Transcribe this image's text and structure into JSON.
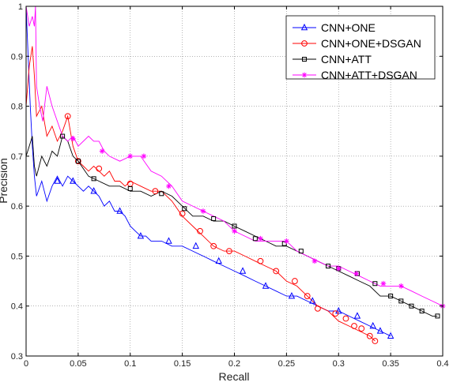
{
  "chart_data": {
    "type": "line",
    "xlabel": "Recall",
    "ylabel": "Precision",
    "xlim": [
      0,
      0.4
    ],
    "ylim": [
      0.3,
      1
    ],
    "xticks": [
      {
        "v": 0,
        "label": "0"
      },
      {
        "v": 0.05,
        "label": "0.05"
      },
      {
        "v": 0.1,
        "label": "0.1"
      },
      {
        "v": 0.15,
        "label": "0.15"
      },
      {
        "v": 0.2,
        "label": "0.2"
      },
      {
        "v": 0.25,
        "label": "0.25"
      },
      {
        "v": 0.3,
        "label": "0.3"
      },
      {
        "v": 0.35,
        "label": "0.35"
      },
      {
        "v": 0.4,
        "label": "0.4"
      }
    ],
    "yticks": [
      {
        "v": 0.3,
        "label": "0.3"
      },
      {
        "v": 0.4,
        "label": "0.4"
      },
      {
        "v": 0.5,
        "label": "0.5"
      },
      {
        "v": 0.6,
        "label": "0.6"
      },
      {
        "v": 0.7,
        "label": "0.7"
      },
      {
        "v": 0.8,
        "label": "0.8"
      },
      {
        "v": 0.9,
        "label": "0.9"
      },
      {
        "v": 1,
        "label": "1"
      }
    ],
    "grid": true,
    "legend_position": "top-right",
    "series": [
      {
        "name": "CNN+ONE",
        "color": "#0000ff",
        "marker": "triangle",
        "points": [
          [
            0,
            1
          ],
          [
            0.002,
            0.9
          ],
          [
            0.004,
            0.8
          ],
          [
            0.006,
            0.72
          ],
          [
            0.008,
            0.66
          ],
          [
            0.01,
            0.62
          ],
          [
            0.015,
            0.65
          ],
          [
            0.02,
            0.61
          ],
          [
            0.025,
            0.64
          ],
          [
            0.03,
            0.66
          ],
          [
            0.035,
            0.64
          ],
          [
            0.04,
            0.66
          ],
          [
            0.045,
            0.65
          ],
          [
            0.05,
            0.64
          ],
          [
            0.055,
            0.63
          ],
          [
            0.06,
            0.64
          ],
          [
            0.065,
            0.63
          ],
          [
            0.07,
            0.62
          ],
          [
            0.075,
            0.6
          ],
          [
            0.08,
            0.61
          ],
          [
            0.085,
            0.59
          ],
          [
            0.09,
            0.59
          ],
          [
            0.095,
            0.58
          ],
          [
            0.1,
            0.56
          ],
          [
            0.105,
            0.55
          ],
          [
            0.11,
            0.54
          ],
          [
            0.115,
            0.54
          ],
          [
            0.12,
            0.53
          ],
          [
            0.13,
            0.53
          ],
          [
            0.14,
            0.52
          ],
          [
            0.15,
            0.52
          ],
          [
            0.16,
            0.51
          ],
          [
            0.17,
            0.5
          ],
          [
            0.18,
            0.49
          ],
          [
            0.19,
            0.48
          ],
          [
            0.2,
            0.47
          ],
          [
            0.21,
            0.46
          ],
          [
            0.22,
            0.45
          ],
          [
            0.23,
            0.44
          ],
          [
            0.24,
            0.43
          ],
          [
            0.25,
            0.42
          ],
          [
            0.26,
            0.42
          ],
          [
            0.27,
            0.41
          ],
          [
            0.28,
            0.4
          ],
          [
            0.29,
            0.39
          ],
          [
            0.3,
            0.39
          ],
          [
            0.31,
            0.38
          ],
          [
            0.32,
            0.37
          ],
          [
            0.33,
            0.36
          ],
          [
            0.34,
            0.35
          ],
          [
            0.35,
            0.34
          ]
        ],
        "markers": [
          [
            0.03,
            0.65
          ],
          [
            0.045,
            0.65
          ],
          [
            0.065,
            0.63
          ],
          [
            0.09,
            0.59
          ],
          [
            0.11,
            0.54
          ],
          [
            0.137,
            0.53
          ],
          [
            0.163,
            0.52
          ],
          [
            0.185,
            0.49
          ],
          [
            0.208,
            0.47
          ],
          [
            0.23,
            0.44
          ],
          [
            0.255,
            0.42
          ],
          [
            0.275,
            0.41
          ],
          [
            0.3,
            0.39
          ],
          [
            0.318,
            0.38
          ],
          [
            0.333,
            0.36
          ],
          [
            0.34,
            0.35
          ],
          [
            0.35,
            0.34
          ]
        ]
      },
      {
        "name": "CNN+ONE+DSGAN",
        "color": "#ff0000",
        "marker": "circle",
        "points": [
          [
            0,
            0.8
          ],
          [
            0.003,
            0.88
          ],
          [
            0.006,
            0.92
          ],
          [
            0.008,
            0.86
          ],
          [
            0.01,
            0.78
          ],
          [
            0.015,
            0.8
          ],
          [
            0.02,
            0.74
          ],
          [
            0.025,
            0.76
          ],
          [
            0.03,
            0.73
          ],
          [
            0.035,
            0.75
          ],
          [
            0.04,
            0.78
          ],
          [
            0.045,
            0.72
          ],
          [
            0.05,
            0.69
          ],
          [
            0.055,
            0.68
          ],
          [
            0.06,
            0.67
          ],
          [
            0.065,
            0.68
          ],
          [
            0.07,
            0.67
          ],
          [
            0.075,
            0.66
          ],
          [
            0.08,
            0.67
          ],
          [
            0.085,
            0.65
          ],
          [
            0.09,
            0.65
          ],
          [
            0.095,
            0.64
          ],
          [
            0.1,
            0.65
          ],
          [
            0.11,
            0.64
          ],
          [
            0.12,
            0.63
          ],
          [
            0.13,
            0.63
          ],
          [
            0.14,
            0.61
          ],
          [
            0.15,
            0.58
          ],
          [
            0.16,
            0.56
          ],
          [
            0.17,
            0.54
          ],
          [
            0.18,
            0.52
          ],
          [
            0.19,
            0.51
          ],
          [
            0.2,
            0.51
          ],
          [
            0.21,
            0.5
          ],
          [
            0.22,
            0.49
          ],
          [
            0.23,
            0.48
          ],
          [
            0.24,
            0.47
          ],
          [
            0.25,
            0.45
          ],
          [
            0.26,
            0.44
          ],
          [
            0.27,
            0.42
          ],
          [
            0.28,
            0.4
          ],
          [
            0.29,
            0.39
          ],
          [
            0.3,
            0.37
          ],
          [
            0.31,
            0.36
          ],
          [
            0.32,
            0.35
          ],
          [
            0.33,
            0.34
          ],
          [
            0.335,
            0.33
          ]
        ],
        "markers": [
          [
            0.04,
            0.78
          ],
          [
            0.05,
            0.69
          ],
          [
            0.07,
            0.675
          ],
          [
            0.1,
            0.645
          ],
          [
            0.124,
            0.63
          ],
          [
            0.15,
            0.585
          ],
          [
            0.167,
            0.55
          ],
          [
            0.18,
            0.52
          ],
          [
            0.195,
            0.51
          ],
          [
            0.225,
            0.49
          ],
          [
            0.24,
            0.47
          ],
          [
            0.258,
            0.45
          ],
          [
            0.27,
            0.42
          ],
          [
            0.28,
            0.395
          ],
          [
            0.297,
            0.385
          ],
          [
            0.307,
            0.375
          ],
          [
            0.315,
            0.36
          ],
          [
            0.322,
            0.355
          ],
          [
            0.33,
            0.34
          ],
          [
            0.335,
            0.33
          ]
        ]
      },
      {
        "name": "CNN+ATT",
        "color": "#000000",
        "marker": "square",
        "points": [
          [
            0,
            0.7
          ],
          [
            0.003,
            0.72
          ],
          [
            0.006,
            0.74
          ],
          [
            0.008,
            0.68
          ],
          [
            0.01,
            0.66
          ],
          [
            0.015,
            0.7
          ],
          [
            0.02,
            0.68
          ],
          [
            0.025,
            0.71
          ],
          [
            0.03,
            0.7
          ],
          [
            0.035,
            0.74
          ],
          [
            0.04,
            0.73
          ],
          [
            0.045,
            0.7
          ],
          [
            0.05,
            0.69
          ],
          [
            0.06,
            0.66
          ],
          [
            0.07,
            0.65
          ],
          [
            0.08,
            0.64
          ],
          [
            0.09,
            0.64
          ],
          [
            0.1,
            0.63
          ],
          [
            0.11,
            0.63
          ],
          [
            0.12,
            0.62
          ],
          [
            0.13,
            0.63
          ],
          [
            0.14,
            0.62
          ],
          [
            0.15,
            0.6
          ],
          [
            0.16,
            0.58
          ],
          [
            0.17,
            0.58
          ],
          [
            0.18,
            0.57
          ],
          [
            0.19,
            0.57
          ],
          [
            0.2,
            0.56
          ],
          [
            0.21,
            0.55
          ],
          [
            0.22,
            0.54
          ],
          [
            0.23,
            0.53
          ],
          [
            0.24,
            0.52
          ],
          [
            0.25,
            0.52
          ],
          [
            0.26,
            0.51
          ],
          [
            0.27,
            0.5
          ],
          [
            0.28,
            0.49
          ],
          [
            0.29,
            0.48
          ],
          [
            0.3,
            0.47
          ],
          [
            0.31,
            0.46
          ],
          [
            0.32,
            0.45
          ],
          [
            0.33,
            0.44
          ],
          [
            0.34,
            0.42
          ],
          [
            0.35,
            0.42
          ],
          [
            0.36,
            0.41
          ],
          [
            0.37,
            0.4
          ],
          [
            0.38,
            0.39
          ],
          [
            0.39,
            0.38
          ],
          [
            0.395,
            0.38
          ]
        ],
        "markers": [
          [
            0.035,
            0.74
          ],
          [
            0.05,
            0.69
          ],
          [
            0.065,
            0.655
          ],
          [
            0.1,
            0.635
          ],
          [
            0.13,
            0.625
          ],
          [
            0.152,
            0.595
          ],
          [
            0.18,
            0.575
          ],
          [
            0.2,
            0.56
          ],
          [
            0.22,
            0.535
          ],
          [
            0.248,
            0.525
          ],
          [
            0.264,
            0.51
          ],
          [
            0.29,
            0.48
          ],
          [
            0.3,
            0.475
          ],
          [
            0.318,
            0.465
          ],
          [
            0.335,
            0.445
          ],
          [
            0.35,
            0.42
          ],
          [
            0.36,
            0.41
          ],
          [
            0.37,
            0.4
          ],
          [
            0.38,
            0.39
          ],
          [
            0.395,
            0.38
          ]
        ]
      },
      {
        "name": "CNN+ATT+DSGAN",
        "color": "#ff00ff",
        "marker": "star",
        "points": [
          [
            0,
            1
          ],
          [
            0.003,
            0.96
          ],
          [
            0.006,
            0.98
          ],
          [
            0.008,
            0.96
          ],
          [
            0.009,
            1
          ],
          [
            0.01,
            0.84
          ],
          [
            0.013,
            0.8
          ],
          [
            0.016,
            0.77
          ],
          [
            0.02,
            0.84
          ],
          [
            0.025,
            0.8
          ],
          [
            0.03,
            0.77
          ],
          [
            0.035,
            0.74
          ],
          [
            0.04,
            0.73
          ],
          [
            0.045,
            0.74
          ],
          [
            0.05,
            0.72
          ],
          [
            0.06,
            0.74
          ],
          [
            0.065,
            0.73
          ],
          [
            0.07,
            0.73
          ],
          [
            0.075,
            0.71
          ],
          [
            0.08,
            0.7
          ],
          [
            0.09,
            0.69
          ],
          [
            0.1,
            0.7
          ],
          [
            0.11,
            0.7
          ],
          [
            0.12,
            0.67
          ],
          [
            0.13,
            0.66
          ],
          [
            0.14,
            0.64
          ],
          [
            0.15,
            0.61
          ],
          [
            0.16,
            0.6
          ],
          [
            0.17,
            0.59
          ],
          [
            0.18,
            0.58
          ],
          [
            0.19,
            0.57
          ],
          [
            0.2,
            0.55
          ],
          [
            0.21,
            0.54
          ],
          [
            0.22,
            0.53
          ],
          [
            0.23,
            0.53
          ],
          [
            0.24,
            0.53
          ],
          [
            0.25,
            0.53
          ],
          [
            0.26,
            0.51
          ],
          [
            0.27,
            0.5
          ],
          [
            0.28,
            0.49
          ],
          [
            0.29,
            0.48
          ],
          [
            0.3,
            0.48
          ],
          [
            0.31,
            0.47
          ],
          [
            0.32,
            0.46
          ],
          [
            0.33,
            0.45
          ],
          [
            0.34,
            0.44
          ],
          [
            0.35,
            0.44
          ],
          [
            0.36,
            0.44
          ],
          [
            0.37,
            0.43
          ],
          [
            0.38,
            0.42
          ],
          [
            0.39,
            0.41
          ],
          [
            0.4,
            0.4
          ]
        ],
        "markers": [
          [
            0.045,
            0.735
          ],
          [
            0.073,
            0.71
          ],
          [
            0.1,
            0.7
          ],
          [
            0.113,
            0.7
          ],
          [
            0.137,
            0.64
          ],
          [
            0.17,
            0.59
          ],
          [
            0.2,
            0.55
          ],
          [
            0.225,
            0.535
          ],
          [
            0.25,
            0.53
          ],
          [
            0.277,
            0.49
          ],
          [
            0.3,
            0.475
          ],
          [
            0.317,
            0.465
          ],
          [
            0.343,
            0.445
          ],
          [
            0.36,
            0.44
          ],
          [
            0.4,
            0.4
          ]
        ]
      }
    ]
  }
}
